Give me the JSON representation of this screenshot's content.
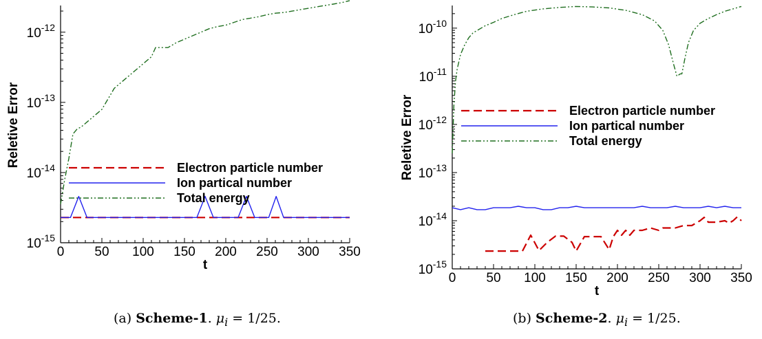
{
  "chart_data": [
    {
      "type": "line",
      "ylabel": "Reletive Error",
      "xlabel": "t",
      "y_scale": "log",
      "xlim": [
        0,
        350
      ],
      "ylim_exp": [
        -15,
        -11.62
      ],
      "x_ticks": [
        "0",
        "50",
        "100",
        "150",
        "200",
        "250",
        "300",
        "350"
      ],
      "y_ticks": [
        {
          "exp": -15,
          "base": "10",
          "sup": "-15"
        },
        {
          "exp": -14,
          "base": "10",
          "sup": "-14"
        },
        {
          "exp": -13,
          "base": "10",
          "sup": "-13"
        },
        {
          "exp": -12,
          "base": "10",
          "sup": "-12"
        }
      ],
      "legend": [
        "Electron particle number",
        "Ion partical number",
        "Total energy"
      ],
      "series": [
        {
          "name": "Electron particle number",
          "color": "#cc0000",
          "style": "dashed",
          "x": [
            0,
            350
          ],
          "log10_y": [
            -14.64,
            -14.64
          ]
        },
        {
          "name": "Ion partical number",
          "color": "#2222ee",
          "style": "solid",
          "x": [
            0,
            12,
            22,
            32,
            165,
            175,
            185,
            215,
            225,
            235,
            252,
            261,
            270,
            350
          ],
          "log10_y": [
            -14.64,
            -14.64,
            -14.34,
            -14.64,
            -14.64,
            -14.34,
            -14.64,
            -14.64,
            -14.34,
            -14.64,
            -14.64,
            -14.34,
            -14.64,
            -14.64
          ]
        },
        {
          "name": "Total energy",
          "color": "#1f6e1f",
          "style": "dashdotdot",
          "x": [
            0,
            5,
            10,
            15,
            20,
            25,
            30,
            35,
            40,
            45,
            50,
            55,
            60,
            65,
            70,
            75,
            80,
            90,
            100,
            110,
            115,
            120,
            125,
            130,
            140,
            150,
            160,
            170,
            180,
            190,
            200,
            210,
            220,
            230,
            240,
            250,
            260,
            270,
            280,
            290,
            300,
            310,
            320,
            330,
            340,
            350
          ],
          "log10_y": [
            -14.45,
            -14.1,
            -13.8,
            -13.45,
            -13.38,
            -13.35,
            -13.3,
            -13.25,
            -13.2,
            -13.15,
            -13.1,
            -13.0,
            -12.9,
            -12.8,
            -12.75,
            -12.7,
            -12.65,
            -12.55,
            -12.45,
            -12.35,
            -12.22,
            -12.22,
            -12.22,
            -12.22,
            -12.15,
            -12.1,
            -12.05,
            -12.0,
            -11.95,
            -11.92,
            -11.9,
            -11.86,
            -11.82,
            -11.8,
            -11.78,
            -11.75,
            -11.73,
            -11.72,
            -11.7,
            -11.68,
            -11.66,
            -11.64,
            -11.62,
            -11.6,
            -11.58,
            -11.55
          ]
        }
      ]
    },
    {
      "type": "line",
      "ylabel": "Reletive Error",
      "xlabel": "t",
      "y_scale": "log",
      "xlim": [
        0,
        350
      ],
      "ylim_exp": [
        -15,
        -9.53
      ],
      "x_ticks": [
        "0",
        "50",
        "100",
        "150",
        "200",
        "250",
        "300",
        "350"
      ],
      "y_ticks": [
        {
          "exp": -15,
          "base": "10",
          "sup": "-15"
        },
        {
          "exp": -14,
          "base": "10",
          "sup": "-14"
        },
        {
          "exp": -13,
          "base": "10",
          "sup": "-13"
        },
        {
          "exp": -12,
          "base": "10",
          "sup": "-12"
        },
        {
          "exp": -11,
          "base": "10",
          "sup": "-11"
        },
        {
          "exp": -10,
          "base": "10",
          "sup": "-10"
        }
      ],
      "legend": [
        "Electron particle number",
        "Ion partical number",
        "Total energy"
      ],
      "series": [
        {
          "name": "Electron particle number",
          "color": "#cc0000",
          "style": "dashed",
          "x": [
            40,
            85,
            95,
            105,
            115,
            125,
            135,
            145,
            150,
            160,
            170,
            180,
            190,
            195,
            200,
            205,
            210,
            215,
            220,
            230,
            240,
            250,
            255,
            260,
            270,
            280,
            290,
            300,
            305,
            310,
            320,
            330,
            335,
            340,
            345,
            350
          ],
          "log10_y": [
            -14.63,
            -14.63,
            -14.3,
            -14.62,
            -14.45,
            -14.32,
            -14.32,
            -14.45,
            -14.63,
            -14.33,
            -14.33,
            -14.33,
            -14.6,
            -14.33,
            -14.2,
            -14.3,
            -14.2,
            -14.3,
            -14.2,
            -14.2,
            -14.15,
            -14.2,
            -14.15,
            -14.15,
            -14.15,
            -14.1,
            -14.1,
            -14.0,
            -13.93,
            -14.03,
            -14.03,
            -14.0,
            -14.05,
            -14.0,
            -13.92,
            -14.0
          ]
        },
        {
          "name": "Ion partical number",
          "color": "#2222ee",
          "style": "solid",
          "x": [
            0,
            10,
            20,
            30,
            40,
            50,
            60,
            70,
            80,
            90,
            100,
            110,
            120,
            130,
            140,
            150,
            160,
            170,
            180,
            190,
            200,
            210,
            220,
            230,
            240,
            250,
            260,
            270,
            280,
            290,
            300,
            310,
            320,
            330,
            340,
            350
          ],
          "log10_y": [
            -13.73,
            -13.77,
            -13.73,
            -13.77,
            -13.77,
            -13.73,
            -13.73,
            -13.73,
            -13.7,
            -13.73,
            -13.73,
            -13.77,
            -13.77,
            -13.73,
            -13.73,
            -13.7,
            -13.73,
            -13.73,
            -13.73,
            -13.73,
            -13.73,
            -13.73,
            -13.73,
            -13.7,
            -13.73,
            -13.73,
            -13.73,
            -13.7,
            -13.73,
            -13.73,
            -13.73,
            -13.7,
            -13.73,
            -13.7,
            -13.73,
            -13.73
          ]
        },
        {
          "name": "Total energy",
          "color": "#1f6e1f",
          "style": "dashdotdot",
          "x": [
            0,
            2,
            4,
            6,
            8,
            10,
            15,
            20,
            25,
            30,
            40,
            50,
            60,
            75,
            90,
            110,
            130,
            150,
            170,
            190,
            210,
            230,
            245,
            255,
            262,
            268,
            272,
            276,
            278,
            282,
            286,
            292,
            300,
            310,
            320,
            330,
            340,
            350
          ],
          "log10_y": [
            -12.6,
            -11.6,
            -11.1,
            -10.85,
            -10.7,
            -10.55,
            -10.35,
            -10.2,
            -10.1,
            -10.05,
            -9.95,
            -9.88,
            -9.8,
            -9.72,
            -9.65,
            -9.6,
            -9.57,
            -9.55,
            -9.56,
            -9.58,
            -9.63,
            -9.72,
            -9.85,
            -10.05,
            -10.35,
            -10.75,
            -11.0,
            -10.95,
            -10.95,
            -10.6,
            -10.3,
            -10.05,
            -9.9,
            -9.8,
            -9.72,
            -9.65,
            -9.6,
            -9.55
          ]
        }
      ]
    }
  ],
  "captions": [
    {
      "prefix": "(a) ",
      "scheme": "Scheme-1",
      "dot": ". ",
      "mu": "μ",
      "sub": "i",
      "eq": " = 1/25."
    },
    {
      "prefix": "(b) ",
      "scheme": "Scheme-2",
      "dot": ". ",
      "mu": "μ",
      "sub": "i",
      "eq": " = 1/25."
    }
  ]
}
